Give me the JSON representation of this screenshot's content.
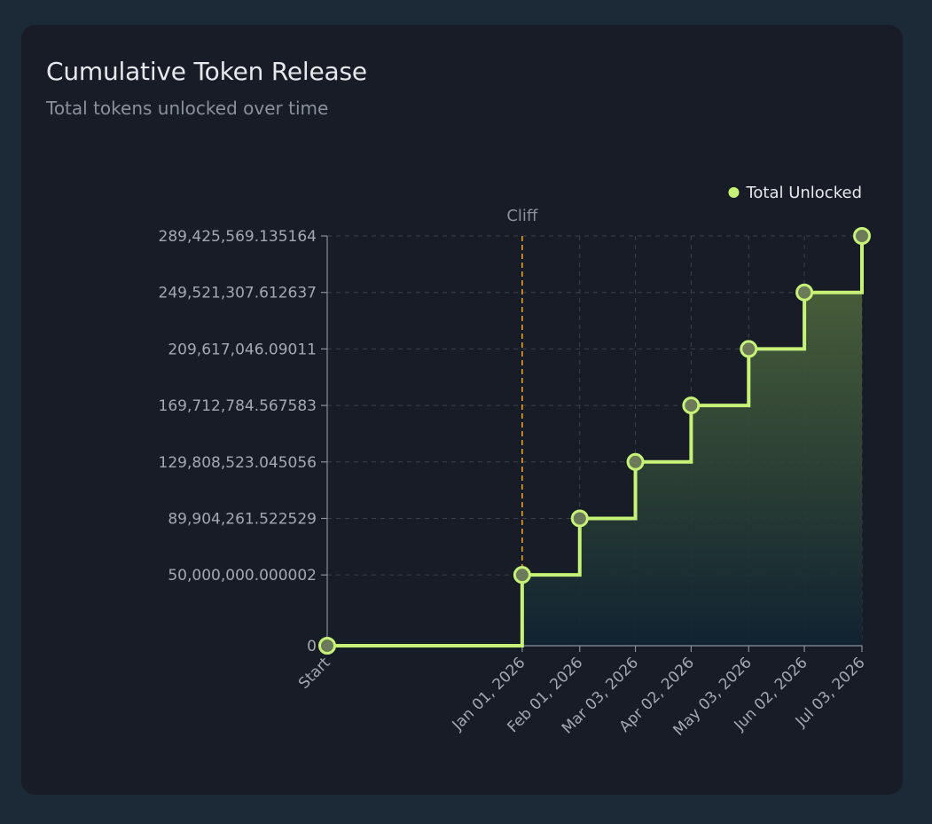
{
  "card": {
    "title": "Cumulative Token Release",
    "subtitle": "Total tokens unlocked over time"
  },
  "colors": {
    "page_bg": "#1c2937",
    "card_bg": "#181c26",
    "series": "#c6f277",
    "cliff": "#f5a623",
    "grid": "#3a404c",
    "axis": "#8a909c",
    "area_top": "#556e3c",
    "area_bottom": "#102332"
  },
  "chart_data": {
    "type": "line",
    "step": "after",
    "title": "Cumulative Token Release",
    "subtitle": "Total tokens unlocked over time",
    "xlabel": "",
    "ylabel": "",
    "categories": [
      "Start",
      "Jan 01, 2026",
      "Feb 01, 2026",
      "Mar 03, 2026",
      "Apr 02, 2026",
      "May 03, 2026",
      "Jun 02, 2026",
      "Jul 03, 2026"
    ],
    "x_days": [
      -105,
      0,
      31,
      61,
      91,
      122,
      152,
      183
    ],
    "series": [
      {
        "name": "Total Unlocked",
        "values": [
          0,
          50000000.000002,
          89904261.522529,
          129808523.045056,
          169712784.567583,
          209617046.09011,
          249521307.612637,
          289425569.135164
        ]
      }
    ],
    "y_ticks": [
      0,
      50000000.000002,
      89904261.522529,
      129808523.045056,
      169712784.567583,
      209617046.09011,
      249521307.612637,
      289425569.135164
    ],
    "y_tick_labels": [
      "0",
      "50,000,000.000002",
      "89,904,261.522529",
      "129,808,523.045056",
      "169,712,784.567583",
      "209,617,046.09011",
      "249,521,307.612637",
      "289,425,569.135164"
    ],
    "ylim": [
      0,
      289425569.135164
    ],
    "grid": true,
    "legend": {
      "position": "top-right",
      "entries": [
        "Total Unlocked"
      ]
    },
    "annotations": [
      {
        "type": "vertical-line",
        "label": "Cliff",
        "x_category": "Jan 01, 2026"
      }
    ]
  }
}
